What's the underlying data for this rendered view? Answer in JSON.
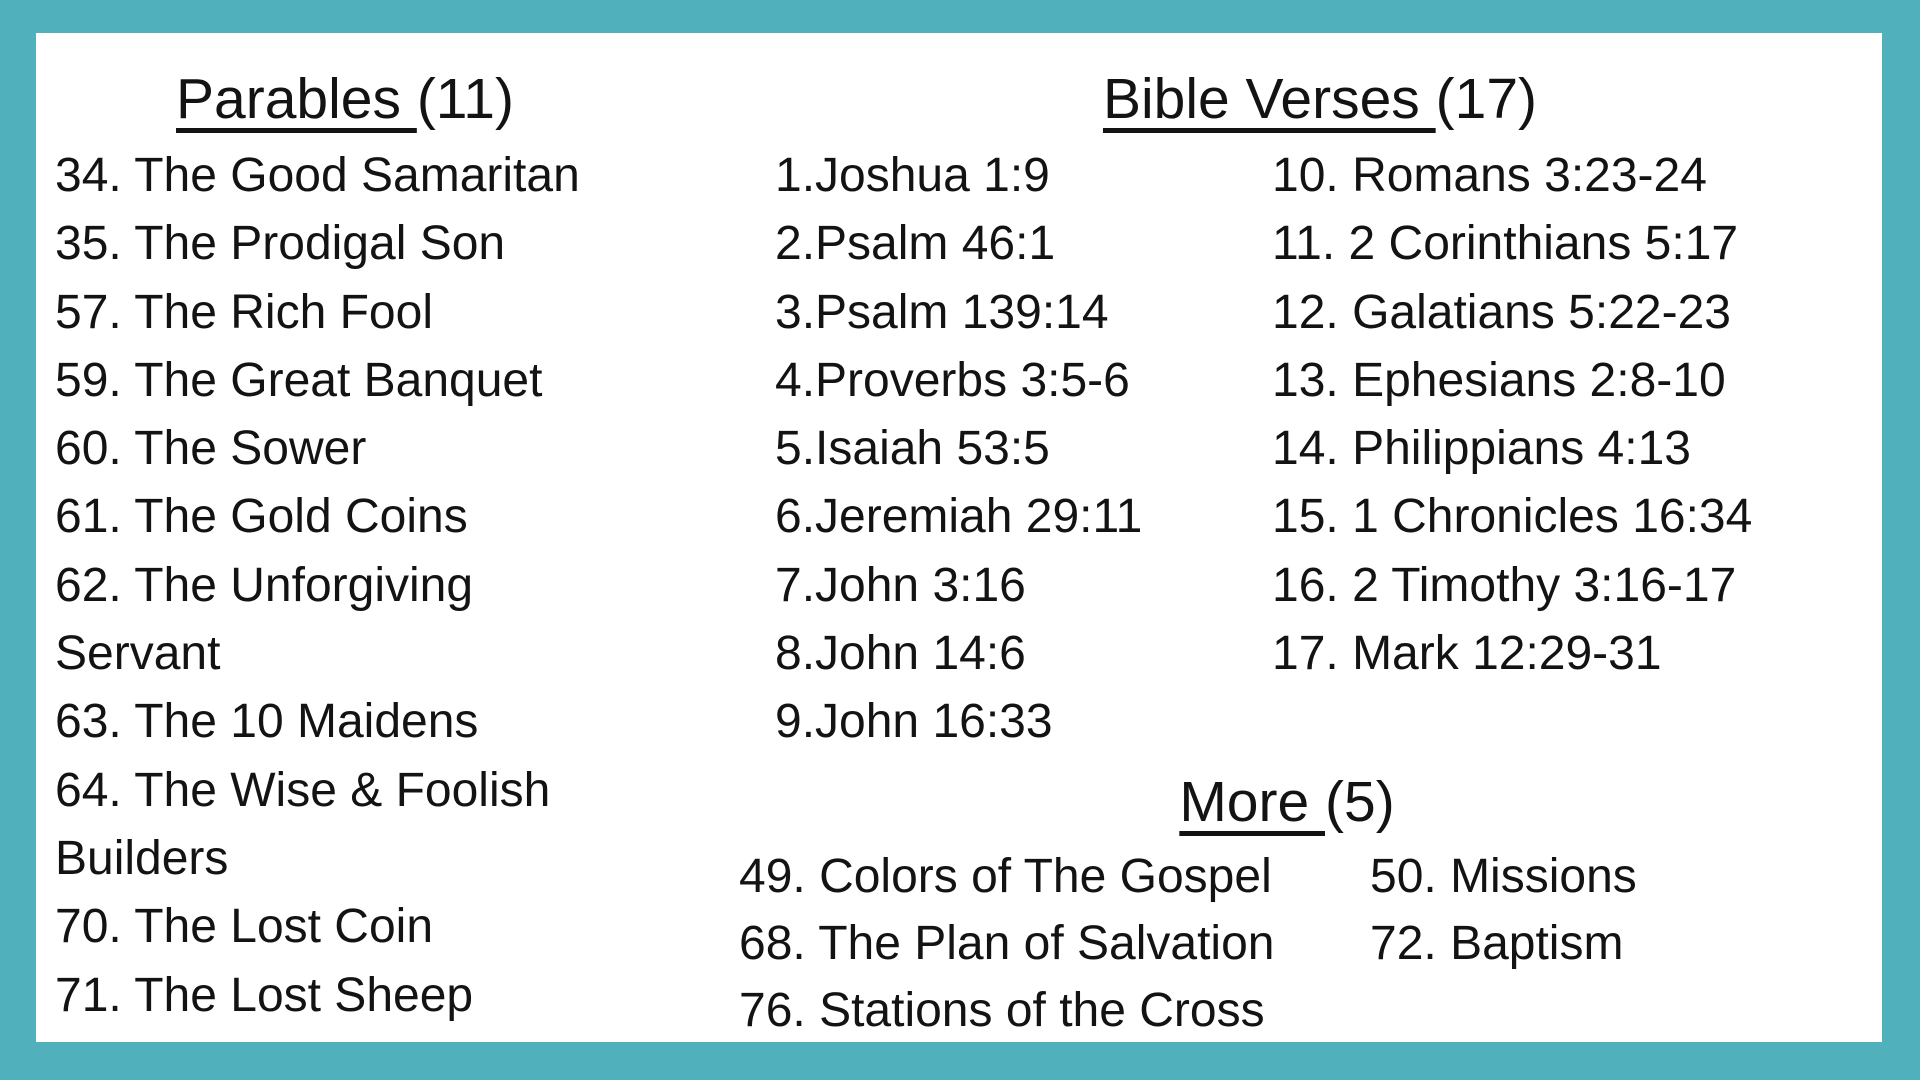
{
  "page": {
    "background_color": "#50B0BC",
    "surface_color": "#FFFFFF",
    "text_color": "#131313"
  },
  "sections": {
    "parables": {
      "title": "Parables ",
      "count": "(11)",
      "items": [
        "34. The Good Samaritan",
        "35. The Prodigal Son",
        "57. The Rich Fool",
        "59. The Great Banquet",
        "60. The Sower",
        "61. The Gold Coins",
        "62. The Unforgiving Servant",
        "63. The 10 Maidens",
        "64. The Wise & Foolish Builders",
        "70. The Lost Coin",
        "71. The Lost Sheep"
      ]
    },
    "verses": {
      "title": "Bible Verses ",
      "count": "(17)",
      "col1": [
        "1.Joshua 1:9",
        "2.Psalm 46:1",
        "3.Psalm 139:14",
        "4.Proverbs 3:5-6",
        "5.Isaiah 53:5",
        "6.Jeremiah 29:11",
        "7.John 3:16",
        "8.John 14:6",
        "9.John 16:33"
      ],
      "col2": [
        "10. Romans 3:23-24",
        "11. 2 Corinthians 5:17",
        "12. Galatians 5:22-23",
        "13. Ephesians 2:8-10",
        "14. Philippians 4:13",
        "15. 1 Chronicles 16:34",
        "16. 2 Timothy 3:16-17",
        "17. Mark 12:29-31"
      ]
    },
    "more": {
      "title": "More ",
      "count": "(5)",
      "col1": [
        "49. Colors of The Gospel",
        "68. The Plan of Salvation",
        "76. Stations of the Cross"
      ],
      "col2": [
        "50. Missions",
        "72. Baptism"
      ]
    }
  }
}
